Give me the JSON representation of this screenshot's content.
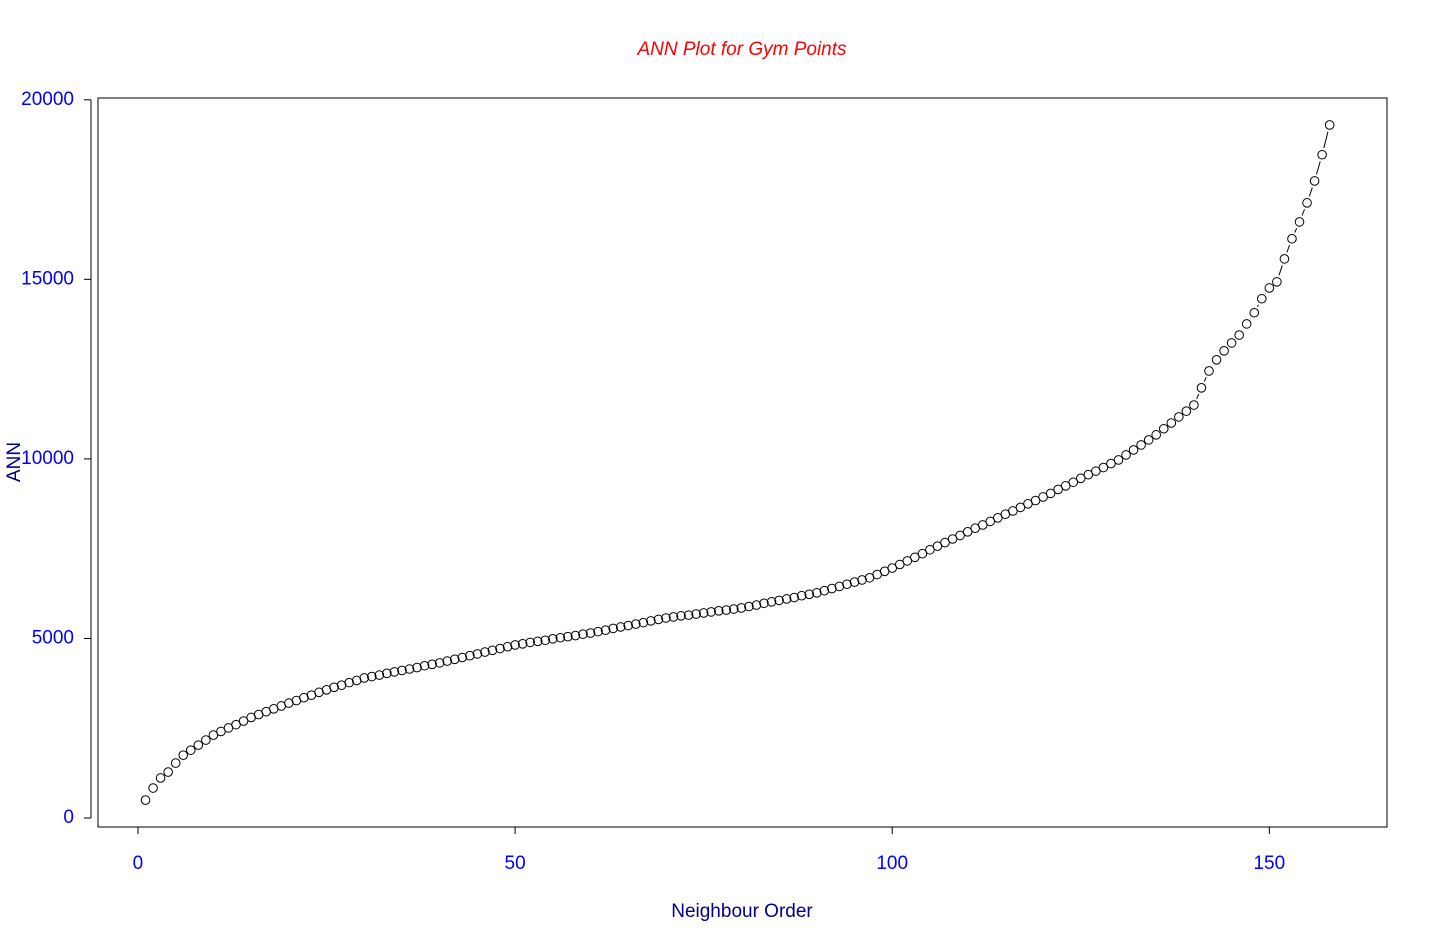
{
  "chart_data": {
    "type": "scatter",
    "title": "ANN Plot for Gym Points",
    "x_label": "Neighbour Order",
    "y_label": "ANN",
    "title_color": "#ff0000",
    "label_color": "#00008b",
    "tick_color": "#0000ff",
    "color": "#000000",
    "connect": true,
    "xlim": [
      -5.3,
      165.6
    ],
    "ylim": [
      -250,
      20050
    ],
    "xticks": [
      0,
      50,
      100,
      150
    ],
    "yticks": [
      0,
      5000,
      10000,
      15000,
      20000
    ],
    "x": [
      1,
      2,
      3,
      4,
      5,
      6,
      7,
      8,
      9,
      10,
      11,
      12,
      13,
      14,
      15,
      16,
      17,
      18,
      19,
      20,
      21,
      22,
      23,
      24,
      25,
      26,
      27,
      28,
      29,
      30,
      31,
      32,
      33,
      34,
      35,
      36,
      37,
      38,
      39,
      40,
      41,
      42,
      43,
      44,
      45,
      46,
      47,
      48,
      49,
      50,
      51,
      52,
      53,
      54,
      55,
      56,
      57,
      58,
      59,
      60,
      61,
      62,
      63,
      64,
      65,
      66,
      67,
      68,
      69,
      70,
      71,
      72,
      73,
      74,
      75,
      76,
      77,
      78,
      79,
      80,
      81,
      82,
      83,
      84,
      85,
      86,
      87,
      88,
      89,
      90,
      91,
      92,
      93,
      94,
      95,
      96,
      97,
      98,
      99,
      100,
      101,
      102,
      103,
      104,
      105,
      106,
      107,
      108,
      109,
      110,
      111,
      112,
      113,
      114,
      115,
      116,
      117,
      118,
      119,
      120,
      121,
      122,
      123,
      124,
      125,
      126,
      127,
      128,
      129,
      130,
      131,
      132,
      133,
      134,
      135,
      136,
      137,
      138,
      139,
      140,
      141,
      142,
      143,
      144,
      145,
      146,
      147,
      148,
      149,
      150,
      151,
      152,
      153,
      154,
      155,
      156,
      157,
      158
    ],
    "values": [
      500,
      835,
      1115,
      1280,
      1530,
      1750,
      1890,
      2030,
      2170,
      2310,
      2410,
      2510,
      2600,
      2700,
      2800,
      2880,
      2960,
      3040,
      3120,
      3200,
      3270,
      3350,
      3420,
      3500,
      3570,
      3640,
      3700,
      3770,
      3830,
      3900,
      3940,
      3980,
      4030,
      4070,
      4110,
      4150,
      4190,
      4240,
      4280,
      4320,
      4370,
      4420,
      4470,
      4520,
      4570,
      4620,
      4670,
      4720,
      4770,
      4820,
      4850,
      4890,
      4920,
      4950,
      4990,
      5020,
      5050,
      5080,
      5120,
      5150,
      5190,
      5230,
      5280,
      5320,
      5360,
      5400,
      5440,
      5490,
      5530,
      5570,
      5600,
      5630,
      5650,
      5680,
      5710,
      5740,
      5770,
      5790,
      5820,
      5850,
      5890,
      5930,
      5980,
      6020,
      6060,
      6100,
      6140,
      6190,
      6230,
      6270,
      6330,
      6390,
      6450,
      6510,
      6570,
      6630,
      6690,
      6780,
      6870,
      6960,
      7060,
      7160,
      7260,
      7360,
      7470,
      7570,
      7670,
      7770,
      7870,
      7970,
      8070,
      8160,
      8260,
      8360,
      8460,
      8550,
      8650,
      8750,
      8840,
      8940,
      9040,
      9150,
      9250,
      9350,
      9460,
      9560,
      9660,
      9760,
      9870,
      9970,
      10110,
      10250,
      10390,
      10530,
      10670,
      10840,
      11000,
      11170,
      11330,
      11500,
      11980,
      12450,
      12760,
      13010,
      13230,
      13450,
      13760,
      14070,
      14460,
      14760,
      14930,
      15570,
      16130,
      16600,
      17130,
      17740,
      18470,
      19300
    ]
  }
}
